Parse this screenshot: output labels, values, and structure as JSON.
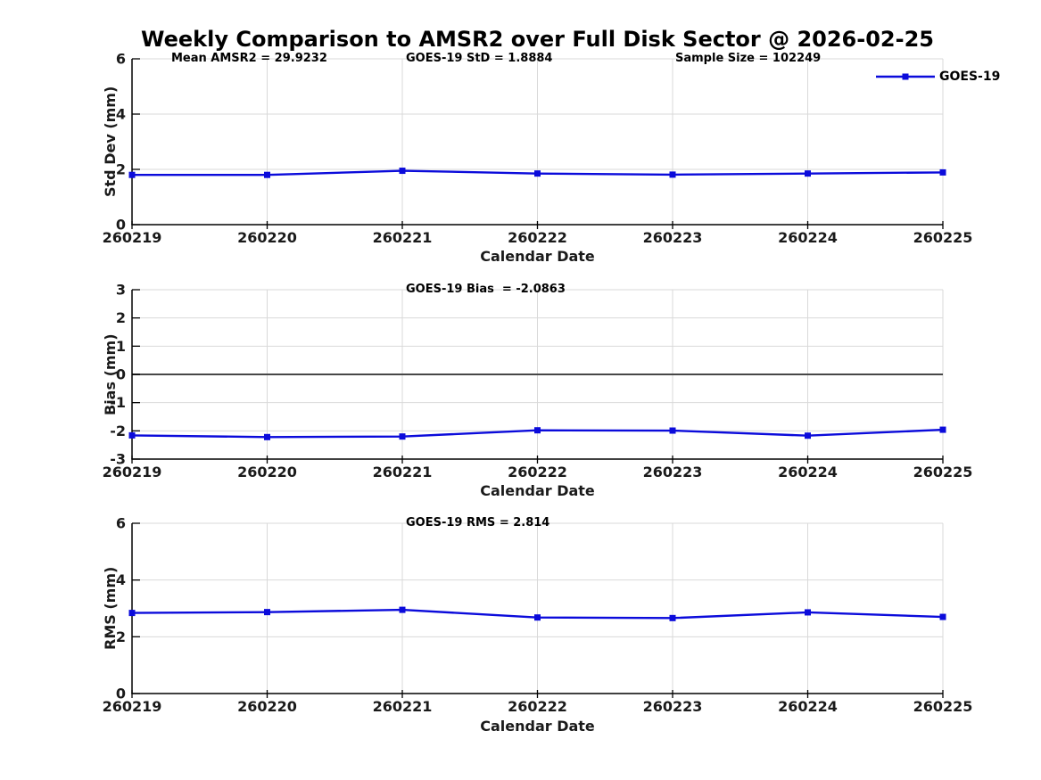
{
  "page_title": "Weekly Comparison to AMSR2 over Full Disk Sector @ 2026-02-25",
  "colors": {
    "series_line": "#0b0bdb",
    "grid": "#d9d9d9",
    "axis": "#000000",
    "zero_line": "#474747",
    "tick_label": "#1a1a1a"
  },
  "legend": {
    "series_label": "GOES-19",
    "position": "top-right-outside"
  },
  "chart_data": [
    {
      "type": "line",
      "title": "",
      "annotations": [
        {
          "text": "Mean AMSR2 = 29.9232"
        },
        {
          "text": "GOES-19 StD = 1.8884"
        },
        {
          "text": "Sample Size = 102249"
        }
      ],
      "categories": [
        "260219",
        "260220",
        "260221",
        "260222",
        "260223",
        "260224",
        "260225"
      ],
      "series": [
        {
          "name": "GOES-19",
          "values": [
            1.8,
            1.8,
            1.95,
            1.85,
            1.81,
            1.85,
            1.89
          ]
        }
      ],
      "xlabel": "Calendar Date",
      "ylabel": "Std Dev (mm)",
      "ylim": [
        0,
        6
      ],
      "yticks": [
        0,
        2,
        4,
        6
      ],
      "grid": true,
      "zero_line": false,
      "legend": true,
      "marker": "square"
    },
    {
      "type": "line",
      "title": "",
      "annotations": [
        {
          "text": "GOES-19 Bias  = -2.0863"
        }
      ],
      "categories": [
        "260219",
        "260220",
        "260221",
        "260222",
        "260223",
        "260224",
        "260225"
      ],
      "series": [
        {
          "name": "GOES-19",
          "values": [
            -2.16,
            -2.22,
            -2.2,
            -1.98,
            -1.99,
            -2.17,
            -1.96
          ]
        }
      ],
      "xlabel": "Calendar Date",
      "ylabel": "Bias (mm)",
      "ylim": [
        -3,
        3
      ],
      "yticks": [
        -3,
        -2,
        -1,
        0,
        1,
        2,
        3
      ],
      "grid": true,
      "zero_line": true,
      "legend": false,
      "marker": "square"
    },
    {
      "type": "line",
      "title": "",
      "annotations": [
        {
          "text": "GOES-19 RMS = 2.814"
        }
      ],
      "categories": [
        "260219",
        "260220",
        "260221",
        "260222",
        "260223",
        "260224",
        "260225"
      ],
      "series": [
        {
          "name": "GOES-19",
          "values": [
            2.84,
            2.87,
            2.95,
            2.68,
            2.66,
            2.86,
            2.7
          ]
        }
      ],
      "xlabel": "Calendar Date",
      "ylabel": "RMS (mm)",
      "ylim": [
        0,
        6
      ],
      "yticks": [
        0,
        2,
        4,
        6
      ],
      "grid": true,
      "zero_line": false,
      "legend": false,
      "marker": "square"
    }
  ]
}
